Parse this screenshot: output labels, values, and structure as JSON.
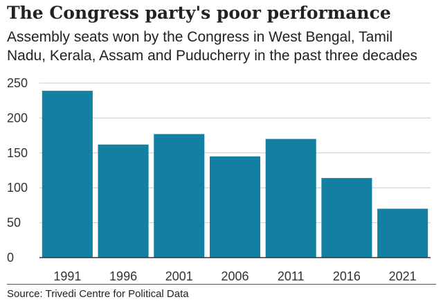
{
  "chart_data": {
    "type": "bar",
    "title": "The Congress party's poor performance",
    "subtitle": [
      "Assembly seats won by the Congress in West Bengal, Tamil",
      "Nadu, Kerala, Assam and Puducherry in the past three decades"
    ],
    "categories": [
      "1991",
      "1996",
      "2001",
      "2006",
      "2011",
      "2016",
      "2021"
    ],
    "values": [
      239,
      162,
      177,
      145,
      170,
      114,
      70
    ],
    "ylim": [
      0,
      250
    ],
    "yticks": [
      0,
      50,
      100,
      150,
      200,
      250
    ],
    "xlabel": "",
    "ylabel": "",
    "grid": true,
    "bar_color": "#1380a1",
    "grid_color": "#cbcbcb",
    "source": "Source: Trivedi Centre for Political Data"
  }
}
